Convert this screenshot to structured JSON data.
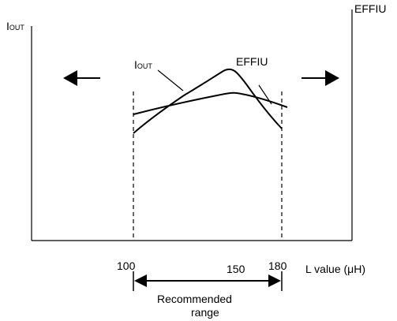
{
  "labels": {
    "iout_axis_main": "I",
    "iout_axis_sub": "OUT",
    "effiu_axis": "EFFIU",
    "iout_curve_main": "I",
    "iout_curve_sub": "OUT",
    "effiu_curve": "EFFIU",
    "tick_100": "100",
    "tick_150": "150",
    "tick_180": "180",
    "x_axis_label": "L value (μH)",
    "recommended_line1": "Recommended",
    "recommended_line2": "range"
  },
  "colors": {
    "stroke": "#000000",
    "background": "#ffffff"
  }
}
